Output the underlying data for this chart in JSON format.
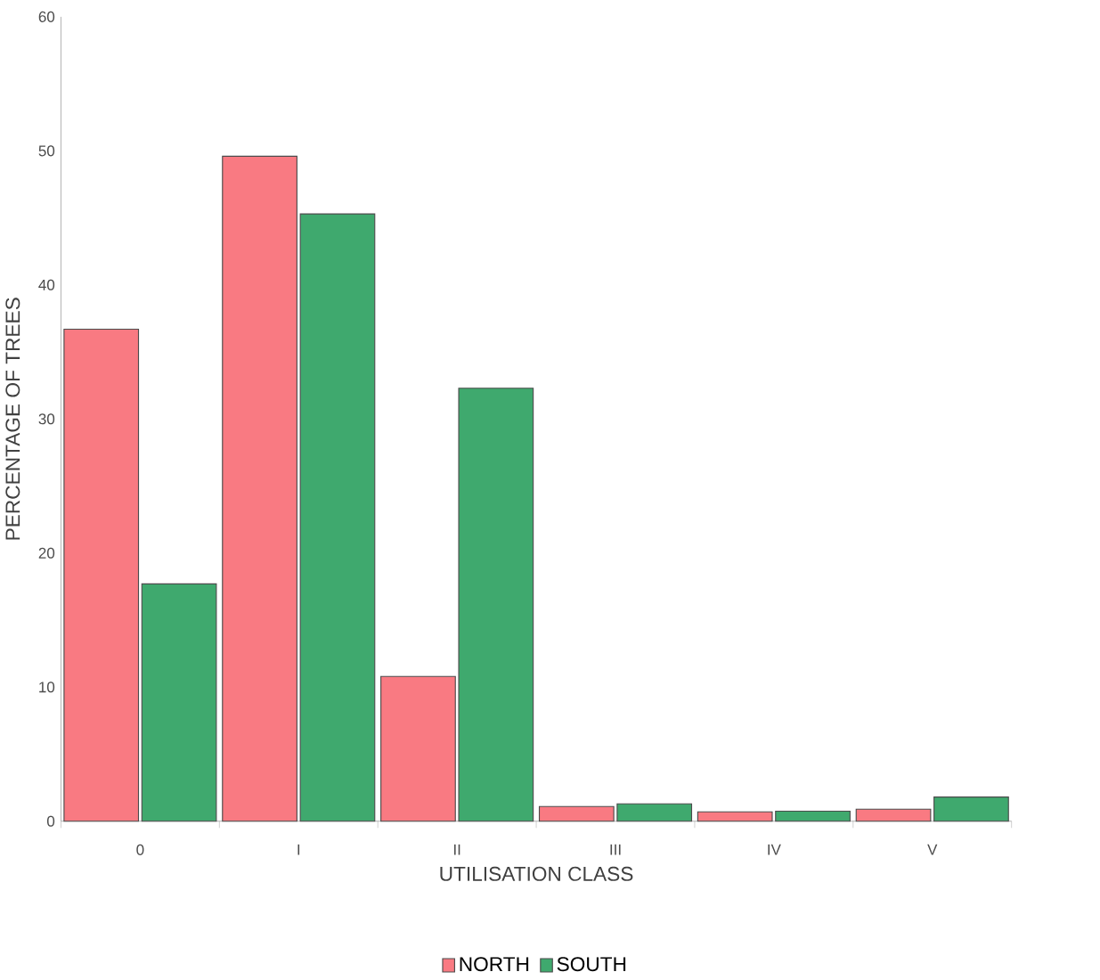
{
  "chart_data": {
    "type": "bar",
    "xlabel": "UTILISATION CLASS",
    "ylabel": "PERCENTAGE OF TREES",
    "categories": [
      "0",
      "I",
      "II",
      "III",
      "IV",
      "V"
    ],
    "series": [
      {
        "name": "NORTH",
        "color": "#f97a82",
        "values": [
          36.7,
          49.6,
          10.8,
          1.1,
          0.7,
          0.9
        ]
      },
      {
        "name": "SOUTH",
        "color": "#3fa96e",
        "values": [
          17.7,
          45.3,
          32.3,
          1.3,
          0.75,
          1.8
        ]
      }
    ],
    "ylim": [
      0,
      60
    ],
    "yticks": [
      0,
      10,
      20,
      30,
      40,
      50,
      60
    ],
    "grid": false,
    "legend": "bottom"
  }
}
